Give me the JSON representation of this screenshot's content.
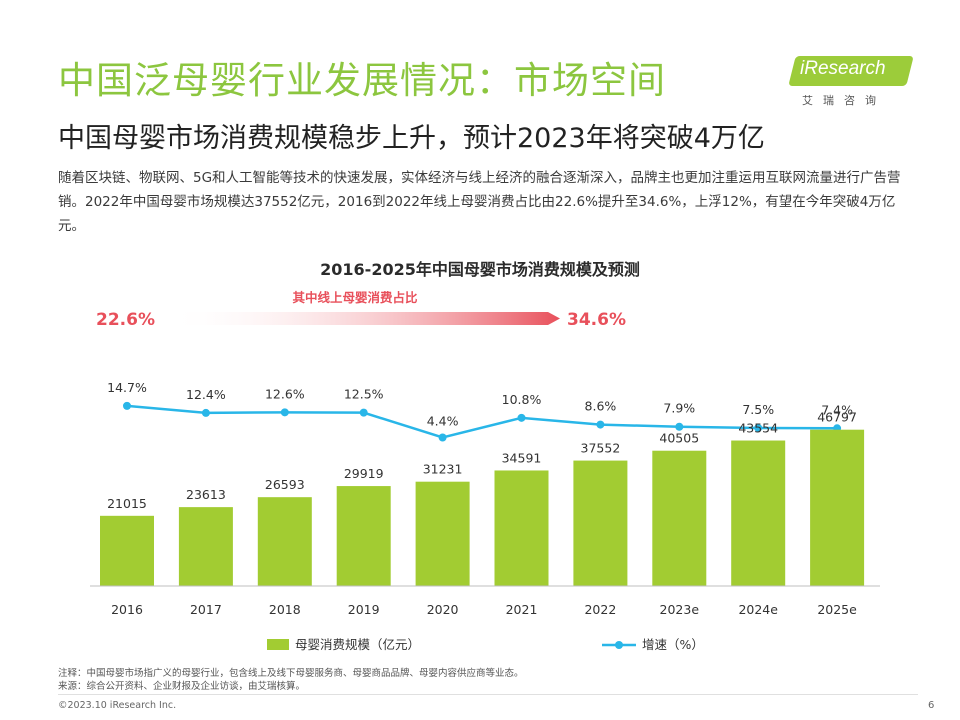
{
  "header": {
    "title": "中国泛母婴行业发展情况：市场空间",
    "subtitle": "中国母婴市场消费规模稳步上升，预计2023年将突破4万亿"
  },
  "logo": {
    "brand": "iResearch",
    "cn": "艾瑞咨询",
    "color": "#9ccc3a"
  },
  "intro": "随着区块链、物联网、5G和人工智能等技术的快速发展，实体经济与线上经济的融合逐渐深入，品牌主也更加注重运用互联网流量进行广告营销。2022年中国母婴市场规模达37552亿元，2016到2022年线上母婴消费占比由22.6%提升至34.6%，上浮12%，有望在今年突破4万亿元。",
  "chart_data": {
    "type": "bar",
    "title": "2016-2025年中国母婴市场消费规模及预测",
    "categories": [
      "2016",
      "2017",
      "2018",
      "2019",
      "2020",
      "2021",
      "2022",
      "2023e",
      "2024e",
      "2025e"
    ],
    "series": [
      {
        "name": "母婴消费规模（亿元）",
        "type": "bar",
        "color": "#a2cc32",
        "values": [
          21015,
          23613,
          26593,
          29919,
          31231,
          34591,
          37552,
          40505,
          43554,
          46797
        ]
      },
      {
        "name": "增速（%）",
        "type": "line",
        "color": "#29b6e8",
        "values": [
          14.7,
          12.4,
          12.6,
          12.5,
          4.4,
          10.8,
          8.6,
          7.9,
          7.5,
          7.4
        ],
        "labels": [
          "14.7%",
          "12.4%",
          "12.6%",
          "12.5%",
          "4.4%",
          "10.8%",
          "8.6%",
          "7.9%",
          "7.5%",
          "7.4%"
        ]
      }
    ],
    "online_share": {
      "label": "其中线上母婴消费占比",
      "start": "22.6%",
      "end": "34.6%",
      "color": "#e8505b"
    },
    "legend": "bottom"
  },
  "footer": {
    "note": "注释：中国母婴市场指广义的母婴行业，包含线上及线下母婴服务商、母婴商品品牌、母婴内容供应商等业态。",
    "source": "来源：综合公开资料、企业财报及企业访谈，由艾瑞核算。",
    "copyright": "©2023.10 iResearch Inc.",
    "page": "6"
  }
}
